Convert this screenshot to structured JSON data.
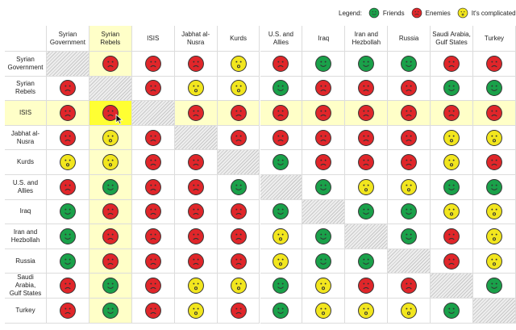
{
  "legend": {
    "label": "Legend:",
    "items": [
      {
        "key": "friend",
        "label": "Friends"
      },
      {
        "key": "enemy",
        "label": "Enemies"
      },
      {
        "key": "complicated",
        "label": "It's complicated"
      }
    ]
  },
  "colors": {
    "friend": "#1aa14a",
    "enemy": "#e0262a",
    "complicated": "#f2e61e",
    "face_stroke": "#333333",
    "header_highlight": "#ffffc8",
    "selected_cell": "#ffff33"
  },
  "factions": [
    "Syrian Government",
    "Syrian Rebels",
    "ISIS",
    "Jabhat al-Nusra",
    "Kurds",
    "U.S. and Allies",
    "Iraq",
    "Iran and Hezbollah",
    "Russia",
    "Saudi Arabia, Gulf States",
    "Turkey"
  ],
  "column_labels": [
    "Syrian\nGovernment",
    "Syrian Rebels",
    "ISIS",
    "Jabhat al-\nNusra",
    "Kurds",
    "U.S. and\nAllies",
    "Iraq",
    "Iran and\nHezbollah",
    "Russia",
    "Saudi Arabia,\nGulf States",
    "Turkey"
  ],
  "row_labels": [
    "Syrian\nGovernment",
    "Syrian Rebels",
    "ISIS",
    "Jabhat al-\nNusra",
    "Kurds",
    "U.S. and\nAllies",
    "Iraq",
    "Iran and\nHezbollah",
    "Russia",
    "Saudi Arabia,\nGulf States",
    "Turkey"
  ],
  "relations": [
    [
      null,
      "E",
      "E",
      "E",
      "C",
      "E",
      "F",
      "F",
      "F",
      "E",
      "E"
    ],
    [
      "E",
      null,
      "E",
      "C",
      "C",
      "F",
      "E",
      "E",
      "E",
      "F",
      "F"
    ],
    [
      "E",
      "E",
      null,
      "E",
      "E",
      "E",
      "E",
      "E",
      "E",
      "E",
      "E"
    ],
    [
      "E",
      "C",
      "E",
      null,
      "E",
      "E",
      "E",
      "E",
      "E",
      "C",
      "C"
    ],
    [
      "C",
      "C",
      "E",
      "E",
      null,
      "F",
      "E",
      "E",
      "E",
      "C",
      "E"
    ],
    [
      "E",
      "F",
      "E",
      "E",
      "F",
      null,
      "F",
      "C",
      "C",
      "F",
      "F"
    ],
    [
      "F",
      "E",
      "E",
      "E",
      "E",
      "F",
      null,
      "F",
      "F",
      "C",
      "C"
    ],
    [
      "F",
      "E",
      "E",
      "E",
      "E",
      "C",
      "F",
      null,
      "F",
      "E",
      "C"
    ],
    [
      "F",
      "E",
      "E",
      "E",
      "E",
      "C",
      "F",
      "F",
      null,
      "E",
      "C"
    ],
    [
      "E",
      "F",
      "E",
      "C",
      "C",
      "F",
      "C",
      "E",
      "E",
      null,
      "F"
    ],
    [
      "E",
      "F",
      "E",
      "C",
      "E",
      "F",
      "C",
      "C",
      "C",
      "F",
      null
    ]
  ],
  "highlight": {
    "row": 2,
    "col": 1
  }
}
